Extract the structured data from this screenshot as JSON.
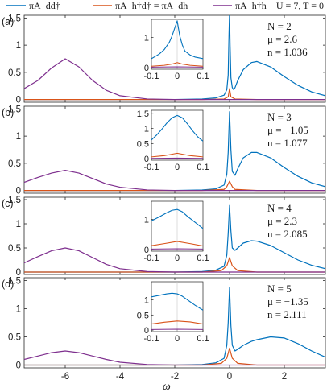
{
  "legend": {
    "entries": [
      {
        "label": "πA_dd†",
        "color": "#0072bd"
      },
      {
        "label": "πA_h†d† = πA_dh",
        "color": "#d95319"
      },
      {
        "label": "πA_h†h",
        "color": "#7e2f8e"
      }
    ],
    "params": "U = 7,  T = 0"
  },
  "chart_data": [
    {
      "type": "line",
      "panel": "(a)",
      "xlabel": "",
      "ylabel": "",
      "xlim": [
        -7.5,
        3.5
      ],
      "ylim": [
        -0.05,
        1.55
      ],
      "xticks": [
        -6,
        -4,
        -2,
        0,
        2
      ],
      "yticks": [
        0,
        0.5,
        1,
        1.5
      ],
      "annotations": [
        "N = 2",
        "μ = 2.6",
        "n = 1.036"
      ],
      "series": [
        {
          "name": "πA_dd†",
          "color": "#0072bd",
          "x": [
            -7.5,
            -6,
            -4,
            -2,
            -1,
            -0.5,
            -0.2,
            -0.1,
            -0.05,
            -0.02,
            0,
            0.02,
            0.05,
            0.1,
            0.15,
            0.2,
            0.3,
            0.5,
            0.8,
            1,
            1.5,
            2,
            2.5,
            3,
            3.5
          ],
          "y": [
            0,
            0,
            0,
            0,
            0.01,
            0.03,
            0.08,
            0.18,
            0.45,
            1.2,
            1.6,
            1.0,
            0.4,
            0.22,
            0.18,
            0.22,
            0.35,
            0.55,
            0.68,
            0.7,
            0.6,
            0.42,
            0.26,
            0.14,
            0.07
          ]
        },
        {
          "name": "πA_h†d† = πA_dh",
          "color": "#d95319",
          "x": [
            -7.5,
            -1,
            -0.2,
            -0.05,
            0,
            0.05,
            0.2,
            1,
            3.5
          ],
          "y": [
            0,
            0,
            0.01,
            0.05,
            0.2,
            0.05,
            0.01,
            0,
            0
          ]
        },
        {
          "name": "πA_h†h",
          "color": "#7e2f8e",
          "x": [
            -7.5,
            -7,
            -6.5,
            -6,
            -5.5,
            -5,
            -4.5,
            -4,
            -3,
            -2,
            -1,
            0,
            3.5
          ],
          "y": [
            0.2,
            0.35,
            0.58,
            0.75,
            0.6,
            0.35,
            0.17,
            0.07,
            0.01,
            0,
            0,
            0,
            0
          ]
        }
      ],
      "inset": {
        "xlim": [
          -0.1,
          0.1
        ],
        "ylim": [
          -0.05,
          1.6
        ],
        "xticks": [
          -0.1,
          0,
          0.1
        ],
        "xtick_labels": [
          "-0.1",
          "0",
          "0.1"
        ],
        "yticks": [
          0,
          1
        ],
        "ytick_labels": [
          "0",
          "1"
        ],
        "series": [
          {
            "name": "πA_dd†",
            "color": "#0072bd",
            "x": [
              -0.1,
              -0.07,
              -0.05,
              -0.03,
              -0.02,
              -0.01,
              0,
              0.01,
              0.02,
              0.03,
              0.05,
              0.07,
              0.1
            ],
            "y": [
              0.3,
              0.45,
              0.6,
              0.85,
              1.05,
              1.3,
              1.55,
              1.05,
              0.75,
              0.55,
              0.42,
              0.35,
              0.3
            ]
          },
          {
            "name": "πA_h†d† = πA_dh",
            "color": "#d95319",
            "x": [
              -0.1,
              -0.05,
              -0.02,
              0,
              0.02,
              0.05,
              0.1
            ],
            "y": [
              0.05,
              0.08,
              0.12,
              0.17,
              0.12,
              0.08,
              0.05
            ]
          },
          {
            "name": "πA_h†h",
            "color": "#7e2f8e",
            "x": [
              -0.1,
              0,
              0.1
            ],
            "y": [
              0.02,
              0.03,
              0.02
            ]
          }
        ]
      }
    },
    {
      "type": "line",
      "panel": "(b)",
      "xlabel": "",
      "ylabel": "",
      "xlim": [
        -7.5,
        3.5
      ],
      "ylim": [
        -0.05,
        1.55
      ],
      "xticks": [
        -6,
        -4,
        -2,
        0,
        2
      ],
      "yticks": [
        0,
        0.5,
        1,
        1.5
      ],
      "annotations": [
        "N = 3",
        "μ = −1.05",
        "n = 1.077"
      ],
      "series": [
        {
          "name": "πA_dd†",
          "color": "#0072bd",
          "x": [
            -7.5,
            -6,
            -4,
            -2,
            -1,
            -0.5,
            -0.2,
            -0.1,
            -0.05,
            0,
            0.05,
            0.1,
            0.2,
            0.3,
            0.5,
            0.8,
            1,
            1.5,
            2,
            2.5,
            3,
            3.5
          ],
          "y": [
            0,
            0,
            0,
            0,
            0.01,
            0.03,
            0.1,
            0.3,
            0.7,
            1.45,
            0.75,
            0.35,
            0.28,
            0.4,
            0.6,
            0.7,
            0.7,
            0.6,
            0.42,
            0.26,
            0.14,
            0.07
          ]
        },
        {
          "name": "πA_h†d† = πA_dh",
          "color": "#d95319",
          "x": [
            -7.5,
            -1,
            -0.2,
            -0.1,
            0,
            0.1,
            0.2,
            1,
            3.5
          ],
          "y": [
            0,
            0,
            0.02,
            0.07,
            0.17,
            0.07,
            0.02,
            0,
            0
          ]
        },
        {
          "name": "πA_h†h",
          "color": "#7e2f8e",
          "x": [
            -7.5,
            -7,
            -6.5,
            -6,
            -5.5,
            -5,
            -4.5,
            -4,
            -3,
            -2,
            -1,
            0,
            3.5
          ],
          "y": [
            0.15,
            0.24,
            0.32,
            0.37,
            0.32,
            0.22,
            0.12,
            0.06,
            0.01,
            0,
            0,
            0,
            0
          ]
        }
      ],
      "inset": {
        "xlim": [
          -0.1,
          0.1
        ],
        "ylim": [
          -0.05,
          1.6
        ],
        "xticks": [
          -0.1,
          0,
          0.1
        ],
        "xtick_labels": [
          "-0.1",
          "0",
          "0.1"
        ],
        "yticks": [
          0,
          0.5,
          1,
          1.5
        ],
        "ytick_labels": [
          "0",
          "0.5",
          "1",
          "1.5"
        ],
        "series": [
          {
            "name": "πA_dd†",
            "color": "#0072bd",
            "x": [
              -0.1,
              -0.08,
              -0.06,
              -0.04,
              -0.02,
              0,
              0.02,
              0.04,
              0.06,
              0.08,
              0.1
            ],
            "y": [
              0.62,
              0.78,
              0.97,
              1.18,
              1.35,
              1.43,
              1.35,
              1.15,
              0.92,
              0.72,
              0.58
            ]
          },
          {
            "name": "πA_h†d† = πA_dh",
            "color": "#d95319",
            "x": [
              -0.1,
              -0.05,
              0,
              0.05,
              0.1
            ],
            "y": [
              0.06,
              0.1,
              0.18,
              0.1,
              0.06
            ]
          },
          {
            "name": "πA_h†h",
            "color": "#7e2f8e",
            "x": [
              -0.1,
              0,
              0.1
            ],
            "y": [
              0.01,
              0.02,
              0.01
            ]
          }
        ]
      }
    },
    {
      "type": "line",
      "panel": "(c)",
      "xlabel": "",
      "ylabel": "",
      "xlim": [
        -7.5,
        3.5
      ],
      "ylim": [
        -0.05,
        1.55
      ],
      "xticks": [
        -6,
        -4,
        -2,
        0,
        2
      ],
      "yticks": [
        0,
        0.5,
        1,
        1.5
      ],
      "annotations": [
        "N = 4",
        "μ = 2.3",
        "n = 2.085"
      ],
      "series": [
        {
          "name": "πA_dd†",
          "color": "#0072bd",
          "x": [
            -7.5,
            -6,
            -4,
            -2,
            -1,
            -0.5,
            -0.2,
            -0.1,
            -0.05,
            0,
            0.05,
            0.1,
            0.2,
            0.3,
            0.5,
            0.8,
            1,
            1.5,
            2,
            2.5,
            3,
            3.5
          ],
          "y": [
            0,
            0,
            0,
            0,
            0.01,
            0.04,
            0.12,
            0.35,
            0.8,
            1.38,
            0.85,
            0.5,
            0.45,
            0.5,
            0.6,
            0.65,
            0.64,
            0.55,
            0.4,
            0.25,
            0.14,
            0.07
          ]
        },
        {
          "name": "πA_h†d† = πA_dh",
          "color": "#d95319",
          "x": [
            -7.5,
            -1,
            -0.3,
            -0.1,
            0,
            0.1,
            0.3,
            1,
            3.5
          ],
          "y": [
            0,
            0,
            0.03,
            0.13,
            0.3,
            0.13,
            0.03,
            0,
            0
          ]
        },
        {
          "name": "πA_h†h",
          "color": "#7e2f8e",
          "x": [
            -7.5,
            -7,
            -6.5,
            -6,
            -5.5,
            -5,
            -4.5,
            -4,
            -3,
            -2,
            -1,
            0,
            3.5
          ],
          "y": [
            0.19,
            0.32,
            0.44,
            0.5,
            0.44,
            0.3,
            0.16,
            0.07,
            0.01,
            0,
            0,
            0,
            0
          ]
        }
      ],
      "inset": {
        "xlim": [
          -0.1,
          0.1
        ],
        "ylim": [
          -0.05,
          1.6
        ],
        "xticks": [
          -0.1,
          0,
          0.1
        ],
        "xtick_labels": [
          "-0.1",
          "0",
          "0.1"
        ],
        "yticks": [
          0,
          1
        ],
        "ytick_labels": [
          "0",
          "1"
        ],
        "series": [
          {
            "name": "πA_dd†",
            "color": "#0072bd",
            "x": [
              -0.1,
              -0.07,
              -0.04,
              -0.02,
              0,
              0.02,
              0.04,
              0.07,
              0.1
            ],
            "y": [
              0.95,
              1.08,
              1.22,
              1.3,
              1.33,
              1.25,
              1.1,
              0.9,
              0.7
            ]
          },
          {
            "name": "πA_h†d† = πA_dh",
            "color": "#d95319",
            "x": [
              -0.1,
              -0.05,
              0,
              0.05,
              0.1
            ],
            "y": [
              0.13,
              0.2,
              0.27,
              0.2,
              0.12
            ]
          },
          {
            "name": "πA_h†h",
            "color": "#7e2f8e",
            "x": [
              -0.1,
              0,
              0.1
            ],
            "y": [
              0.02,
              0.03,
              0.02
            ]
          }
        ]
      }
    },
    {
      "type": "line",
      "panel": "(d)",
      "xlabel": "ω",
      "ylabel": "",
      "xlim": [
        -7.5,
        3.5
      ],
      "ylim": [
        -0.05,
        1.55
      ],
      "xticks": [
        -6,
        -4,
        -2,
        0,
        2
      ],
      "yticks": [
        0,
        0.5,
        1,
        1.5
      ],
      "annotations": [
        "N = 5",
        "μ = −1.35",
        "n = 2.111"
      ],
      "series": [
        {
          "name": "πA_dd†",
          "color": "#0072bd",
          "x": [
            -7.5,
            -6,
            -4,
            -2,
            -1,
            -0.5,
            -0.2,
            -0.1,
            -0.05,
            0,
            0.05,
            0.1,
            0.2,
            0.3,
            0.5,
            0.8,
            1,
            1.5,
            2,
            2.5,
            3,
            3.5
          ],
          "y": [
            0,
            0,
            0,
            0,
            0.01,
            0.04,
            0.12,
            0.35,
            0.75,
            1.38,
            0.7,
            0.35,
            0.25,
            0.28,
            0.35,
            0.42,
            0.45,
            0.5,
            0.48,
            0.38,
            0.25,
            0.14
          ]
        },
        {
          "name": "πA_h†d† = πA_dh",
          "color": "#d95319",
          "x": [
            -7.5,
            -1,
            -0.3,
            -0.1,
            0,
            0.1,
            0.3,
            1,
            3.5
          ],
          "y": [
            0,
            0,
            0.03,
            0.12,
            0.3,
            0.12,
            0.03,
            0,
            0
          ]
        },
        {
          "name": "πA_h†h",
          "color": "#7e2f8e",
          "x": [
            -7.5,
            -7,
            -6.5,
            -6,
            -5.5,
            -5,
            -4.5,
            -4,
            -3,
            -2,
            -1,
            0,
            3.5
          ],
          "y": [
            0.1,
            0.16,
            0.22,
            0.25,
            0.22,
            0.16,
            0.1,
            0.05,
            0.01,
            0,
            0,
            0,
            0
          ]
        }
      ],
      "inset": {
        "xlim": [
          -0.1,
          0.1
        ],
        "ylim": [
          -0.05,
          1.6
        ],
        "xticks": [
          -0.1,
          0,
          0.1
        ],
        "xtick_labels": [
          "-0.1",
          "0",
          "0.1"
        ],
        "yticks": [
          0,
          0.5,
          1
        ],
        "ytick_labels": [
          "0",
          "0.5",
          "1"
        ],
        "series": [
          {
            "name": "πA_dd†",
            "color": "#0072bd",
            "x": [
              -0.1,
              -0.07,
              -0.04,
              -0.02,
              0,
              0.02,
              0.04,
              0.07,
              0.1
            ],
            "y": [
              1.1,
              1.15,
              1.2,
              1.22,
              1.2,
              1.12,
              1.0,
              0.82,
              0.66
            ]
          },
          {
            "name": "πA_h†d† = πA_dh",
            "color": "#d95319",
            "x": [
              -0.1,
              -0.05,
              0,
              0.05,
              0.1
            ],
            "y": [
              0.2,
              0.26,
              0.3,
              0.27,
              0.2
            ]
          },
          {
            "name": "πA_h†h",
            "color": "#7e2f8e",
            "x": [
              -0.1,
              0,
              0.1
            ],
            "y": [
              0.02,
              0.03,
              0.02
            ]
          }
        ]
      }
    }
  ]
}
